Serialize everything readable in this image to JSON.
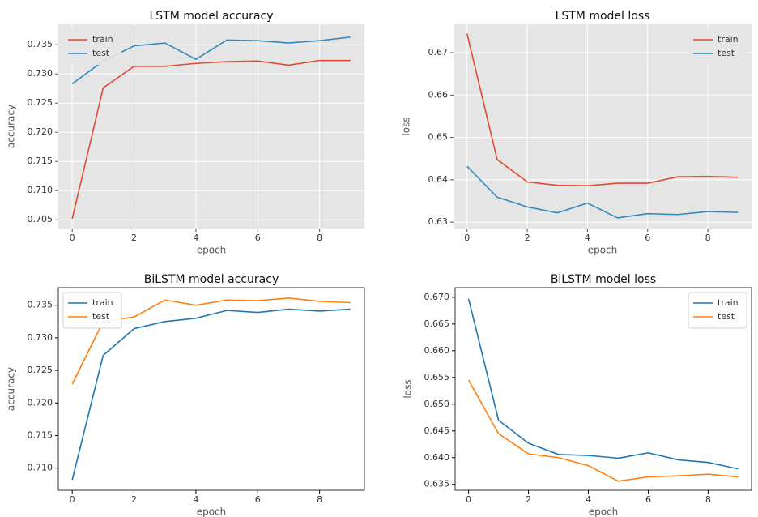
{
  "chart_data": [
    {
      "type": "line",
      "title": "LSTM model accuracy",
      "xlabel": "epoch",
      "ylabel": "accuracy",
      "x": [
        0,
        1,
        2,
        3,
        4,
        5,
        6,
        7,
        8,
        9
      ],
      "xlim": [
        -0.45,
        9.45
      ],
      "xticks": [
        0,
        2,
        4,
        6,
        8
      ],
      "ylim": [
        0.7035,
        0.7385
      ],
      "yticks": [
        0.705,
        {
          "value": 0.71,
          "label": "0.710"
        },
        0.715,
        {
          "value": 0.72,
          "label": "0.720"
        },
        0.725,
        {
          "value": 0.73,
          "label": "0.730"
        },
        0.735
      ],
      "grid": true,
      "background": "#E5E5E5",
      "legend": "upper left",
      "series": [
        {
          "name": "train",
          "color": "#E24A33",
          "values": [
            0.7052,
            0.7276,
            0.7313,
            0.7313,
            0.7318,
            0.7321,
            0.7322,
            0.7315,
            0.7323,
            0.7323
          ]
        },
        {
          "name": "test",
          "color": "#348ABD",
          "values": [
            0.7283,
            0.7322,
            0.7348,
            0.7353,
            0.7325,
            0.7358,
            0.7357,
            0.7353,
            0.7357,
            0.7363
          ]
        }
      ]
    },
    {
      "type": "line",
      "title": "LSTM model loss",
      "xlabel": "epoch",
      "ylabel": "loss",
      "x": [
        0,
        1,
        2,
        3,
        4,
        5,
        6,
        7,
        8,
        9
      ],
      "xlim": [
        -0.45,
        9.45
      ],
      "xticks": [
        0,
        2,
        4,
        6,
        8
      ],
      "ylim": [
        0.6285,
        0.6767
      ],
      "yticks": [
        0.63,
        0.64,
        0.65,
        0.66,
        0.67
      ],
      "grid": true,
      "background": "#E5E5E5",
      "legend": "upper right",
      "series": [
        {
          "name": "train",
          "color": "#E24A33",
          "values": [
            0.6745,
            0.6448,
            0.6395,
            0.6387,
            0.6386,
            0.6392,
            0.6392,
            0.6407,
            0.6408,
            0.6406
          ]
        },
        {
          "name": "test",
          "color": "#348ABD",
          "values": [
            0.6432,
            0.6359,
            0.6336,
            0.6322,
            0.6345,
            0.631,
            0.632,
            0.6318,
            0.6325,
            0.6323
          ]
        }
      ]
    },
    {
      "type": "line",
      "title": "BiLSTM model accuracy",
      "xlabel": "epoch",
      "ylabel": "accuracy",
      "x": [
        0,
        1,
        2,
        3,
        4,
        5,
        6,
        7,
        8,
        9
      ],
      "xlim": [
        -0.45,
        9.45
      ],
      "xticks": [
        0,
        2,
        4,
        6,
        8
      ],
      "ylim": [
        0.7066,
        0.7377
      ],
      "yticks": [
        {
          "value": 0.71,
          "label": "0.710"
        },
        0.715,
        {
          "value": 0.72,
          "label": "0.720"
        },
        0.725,
        {
          "value": 0.73,
          "label": "0.730"
        },
        0.735
      ],
      "grid": false,
      "background": "#ffffff",
      "legend": "upper left",
      "series": [
        {
          "name": "train",
          "color": "#1f77b4",
          "values": [
            0.7082,
            0.7273,
            0.7314,
            0.7325,
            0.733,
            0.7342,
            0.7339,
            0.7344,
            0.7341,
            0.7344
          ]
        },
        {
          "name": "test",
          "color": "#ff7f0e",
          "values": [
            0.7229,
            0.7325,
            0.7332,
            0.7358,
            0.735,
            0.7358,
            0.7357,
            0.7361,
            0.7356,
            0.7354
          ]
        }
      ]
    },
    {
      "type": "line",
      "title": "BiLSTM model loss",
      "xlabel": "epoch",
      "ylabel": "loss",
      "x": [
        0,
        1,
        2,
        3,
        4,
        5,
        6,
        7,
        8,
        9
      ],
      "xlim": [
        -0.45,
        9.45
      ],
      "xticks": [
        0,
        2,
        4,
        6,
        8
      ],
      "ylim": [
        0.6339,
        0.6718
      ],
      "yticks": [
        0.635,
        {
          "value": 0.64,
          "label": "0.640"
        },
        0.645,
        {
          "value": 0.65,
          "label": "0.650"
        },
        0.655,
        {
          "value": 0.66,
          "label": "0.660"
        },
        0.665,
        {
          "value": 0.67,
          "label": "0.670"
        }
      ],
      "grid": false,
      "background": "#ffffff",
      "legend": "upper right",
      "series": [
        {
          "name": "train",
          "color": "#1f77b4",
          "values": [
            0.6697,
            0.647,
            0.6427,
            0.6406,
            0.6404,
            0.6399,
            0.6409,
            0.6396,
            0.6391,
            0.6379
          ]
        },
        {
          "name": "test",
          "color": "#ff7f0e",
          "values": [
            0.6545,
            0.6445,
            0.6407,
            0.64,
            0.6385,
            0.6356,
            0.6364,
            0.6366,
            0.6369,
            0.6364
          ]
        }
      ]
    }
  ]
}
